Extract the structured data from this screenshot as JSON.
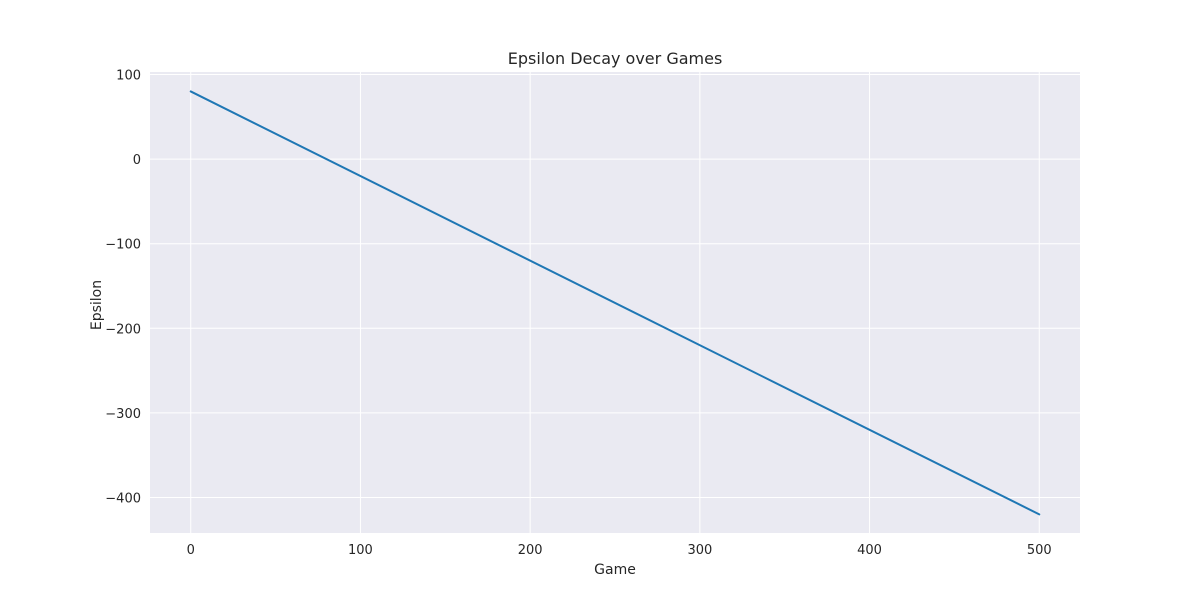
{
  "chart_data": {
    "type": "line",
    "title": "Epsilon Decay over Games",
    "xlabel": "Game",
    "ylabel": "Epsilon",
    "xlim": [
      -24,
      524
    ],
    "ylim": [
      -442,
      103
    ],
    "x_ticks": [
      0,
      100,
      200,
      300,
      400,
      500
    ],
    "y_ticks": [
      100,
      0,
      -100,
      -200,
      -300,
      -400
    ],
    "x_tick_labels": [
      "0",
      "100",
      "200",
      "300",
      "400",
      "500"
    ],
    "y_tick_labels": [
      "100",
      "0",
      "−100",
      "−200",
      "−300",
      "−400"
    ],
    "grid": true,
    "colors": {
      "background": "#eaeaf2",
      "grid": "#ffffff",
      "line": "#1f77b4"
    },
    "series": [
      {
        "x": [
          0,
          500
        ],
        "y": [
          80,
          -420
        ]
      }
    ]
  }
}
